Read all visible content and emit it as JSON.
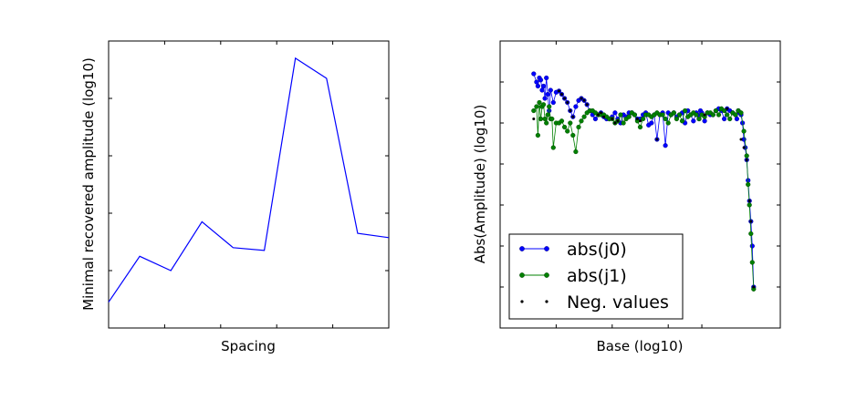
{
  "colors": {
    "blue": "#0000ff",
    "green": "#008000",
    "black": "#000000",
    "frame": "#000000"
  },
  "chart_data": [
    {
      "type": "line",
      "title": "",
      "xlabel": "Spacing",
      "ylabel": "Minimal recovered amplitude (log10)",
      "xlim": [
        0,
        9
      ],
      "ylim": [
        0,
        10
      ],
      "x_ticks": [
        1.8,
        3.6,
        5.4,
        7.2
      ],
      "y_ticks": [
        2,
        4,
        6,
        8
      ],
      "tick_labels_shown": false,
      "grid": false,
      "series": [
        {
          "color": "#0000ff",
          "x": [
            0,
            1,
            2,
            3,
            4,
            5,
            6,
            7,
            8,
            9
          ],
          "values": [
            0.9,
            2.5,
            2.0,
            3.7,
            2.8,
            2.7,
            9.4,
            8.7,
            3.3,
            3.15
          ]
        }
      ]
    },
    {
      "type": "line",
      "title": "",
      "xlabel": "Base (log10)",
      "ylabel": "Abs(Amplitude) (log10)",
      "xlim": [
        0,
        10
      ],
      "ylim": [
        0,
        7
      ],
      "x_ticks": [
        2.0,
        4.0,
        6.0,
        7.2
      ],
      "y_ticks": [
        1,
        2,
        3,
        4,
        5,
        6
      ],
      "tick_labels_shown": false,
      "grid": false,
      "legend_position": "lower-left",
      "series": [
        {
          "name": "abs(j0)",
          "color": "#0000ff",
          "marker": "circle",
          "x": [
            1.2,
            1.3,
            1.35,
            1.4,
            1.45,
            1.5,
            1.55,
            1.6,
            1.65,
            1.7,
            1.75,
            1.8,
            1.9,
            2.0,
            2.1,
            2.2,
            2.3,
            2.4,
            2.5,
            2.6,
            2.7,
            2.8,
            2.9,
            3.0,
            3.1,
            3.2,
            3.3,
            3.4,
            3.5,
            3.6,
            3.7,
            3.8,
            3.9,
            4.0,
            4.1,
            4.2,
            4.3,
            4.4,
            4.5,
            4.6,
            4.7,
            4.8,
            4.9,
            5.0,
            5.1,
            5.2,
            5.3,
            5.4,
            5.5,
            5.6,
            5.7,
            5.8,
            5.9,
            6.0,
            6.1,
            6.2,
            6.3,
            6.4,
            6.5,
            6.6,
            6.7,
            6.8,
            6.9,
            7.0,
            7.05,
            7.1,
            7.15,
            7.2,
            7.3,
            7.4,
            7.5,
            7.6,
            7.7,
            7.8,
            7.9,
            8.0,
            8.1,
            8.2,
            8.3,
            8.4,
            8.45,
            8.5,
            8.55,
            8.6,
            8.65,
            8.7,
            8.75,
            8.8,
            8.85,
            8.9,
            8.95,
            9.0,
            9.05
          ],
          "values": [
            6.2,
            6.0,
            5.9,
            6.1,
            6.05,
            5.8,
            5.9,
            5.6,
            6.1,
            5.7,
            5.3,
            5.8,
            5.5,
            5.75,
            5.78,
            5.7,
            5.6,
            5.5,
            5.3,
            5.15,
            5.4,
            5.55,
            5.6,
            5.55,
            5.45,
            5.3,
            5.2,
            5.1,
            5.2,
            5.25,
            5.15,
            5.1,
            5.1,
            5.15,
            5.25,
            5.1,
            5.0,
            5.2,
            5.15,
            5.25,
            5.25,
            5.2,
            5.1,
            5.1,
            5.2,
            5.25,
            4.95,
            5.0,
            5.2,
            4.6,
            5.2,
            5.25,
            4.45,
            5.25,
            5.2,
            5.25,
            5.15,
            5.2,
            5.25,
            5.0,
            5.3,
            5.2,
            5.05,
            5.25,
            5.2,
            5.1,
            5.3,
            5.25,
            5.05,
            5.25,
            5.2,
            5.2,
            5.3,
            5.35,
            5.3,
            5.1,
            5.35,
            5.3,
            5.25,
            5.2,
            5.1,
            5.3,
            5.25,
            5.2,
            5.0,
            4.6,
            4.4,
            4.1,
            3.6,
            3.1,
            2.6,
            2.0,
            1.0
          ]
        },
        {
          "name": "abs(j1)",
          "color": "#008000",
          "marker": "circle",
          "x": [
            1.2,
            1.3,
            1.35,
            1.4,
            1.45,
            1.5,
            1.55,
            1.6,
            1.65,
            1.7,
            1.75,
            1.8,
            1.85,
            1.9,
            2.0,
            2.1,
            2.2,
            2.3,
            2.4,
            2.5,
            2.6,
            2.7,
            2.8,
            2.9,
            3.0,
            3.1,
            3.2,
            3.3,
            3.4,
            3.5,
            3.6,
            3.7,
            3.8,
            3.9,
            4.0,
            4.1,
            4.2,
            4.3,
            4.4,
            4.5,
            4.6,
            4.7,
            4.8,
            4.9,
            5.0,
            5.1,
            5.2,
            5.3,
            5.4,
            5.5,
            5.6,
            5.7,
            5.8,
            5.9,
            6.0,
            6.1,
            6.2,
            6.3,
            6.4,
            6.5,
            6.6,
            6.7,
            6.8,
            6.9,
            7.0,
            7.1,
            7.2,
            7.3,
            7.4,
            7.5,
            7.6,
            7.7,
            7.8,
            7.9,
            8.0,
            8.1,
            8.2,
            8.3,
            8.4,
            8.5,
            8.6,
            8.7,
            8.8,
            8.85,
            8.9,
            8.95,
            9.0,
            9.05
          ],
          "values": [
            5.3,
            5.4,
            4.7,
            5.5,
            5.1,
            5.4,
            5.45,
            5.1,
            5.0,
            5.2,
            5.4,
            5.1,
            5.1,
            4.4,
            5.0,
            5.0,
            5.05,
            4.9,
            4.8,
            5.0,
            4.7,
            4.3,
            4.9,
            5.05,
            5.15,
            5.25,
            5.3,
            5.3,
            5.25,
            5.2,
            5.2,
            5.2,
            5.15,
            5.1,
            5.1,
            5.0,
            5.05,
            5.2,
            5.0,
            5.1,
            5.15,
            5.25,
            5.2,
            5.05,
            4.9,
            5.1,
            5.2,
            5.2,
            5.15,
            5.2,
            5.25,
            5.2,
            5.2,
            5.1,
            5.0,
            5.2,
            5.25,
            5.1,
            5.2,
            5.05,
            5.3,
            5.15,
            5.2,
            5.25,
            5.2,
            5.1,
            5.2,
            5.15,
            5.25,
            5.25,
            5.2,
            5.3,
            5.2,
            5.35,
            5.3,
            5.2,
            5.1,
            5.25,
            5.2,
            5.3,
            5.25,
            4.8,
            4.2,
            3.5,
            3.0,
            2.3,
            1.6,
            0.95
          ]
        },
        {
          "name": "Neg. values",
          "color": "#000000",
          "marker": "dot",
          "x": [
            1.2,
            2.1,
            2.2,
            2.3,
            2.4,
            2.5,
            2.6,
            2.9,
            3.0,
            3.1,
            3.5,
            3.6,
            3.7,
            4.0,
            4.1,
            4.2,
            4.9,
            5.0,
            5.6,
            7.3,
            8.1,
            8.6,
            8.7,
            8.8,
            8.9,
            8.95,
            9.05
          ],
          "values": [
            5.1,
            5.78,
            5.7,
            5.6,
            5.5,
            5.3,
            5.15,
            5.6,
            5.55,
            5.45,
            5.2,
            5.25,
            5.15,
            5.1,
            5.0,
            5.05,
            5.1,
            5.05,
            4.6,
            5.2,
            5.35,
            4.6,
            4.4,
            4.1,
            3.1,
            2.6,
            1.0
          ]
        }
      ]
    }
  ]
}
